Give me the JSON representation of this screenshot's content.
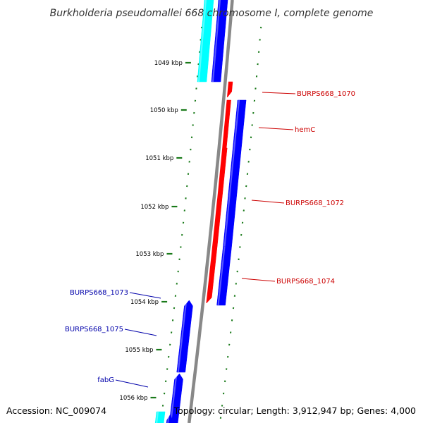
{
  "title": "Burkholderia pseudomallei 668 chromosome I, complete genome",
  "footer": {
    "accession": "Accession: NC_009074",
    "summary": "Topology: circular; Length: 3,912,947 bp; Genes: 4,000"
  },
  "colors": {
    "backbone": "#888888",
    "tick": "#1a7a1a",
    "forward_label": "#cc0000",
    "reverse_label": "#0000aa",
    "cds_forward": "#ff0000",
    "cds_reverse": "#0000ff",
    "rna": "#00ffff"
  },
  "kbp_labels": [
    "1049 kbp",
    "1050 kbp",
    "1051 kbp",
    "1052 kbp",
    "1053 kbp",
    "1054 kbp",
    "1055 kbp",
    "1056 kbp"
  ],
  "gene_labels": [
    {
      "text": "BURPS668_1070",
      "strand": "forward"
    },
    {
      "text": "hemC",
      "strand": "forward"
    },
    {
      "text": "BURPS668_1072",
      "strand": "forward"
    },
    {
      "text": "BURPS668_1074",
      "strand": "forward"
    },
    {
      "text": "BURPS668_1073",
      "strand": "reverse"
    },
    {
      "text": "BURPS668_1075",
      "strand": "reverse"
    },
    {
      "text": "fabG",
      "strand": "reverse"
    }
  ]
}
